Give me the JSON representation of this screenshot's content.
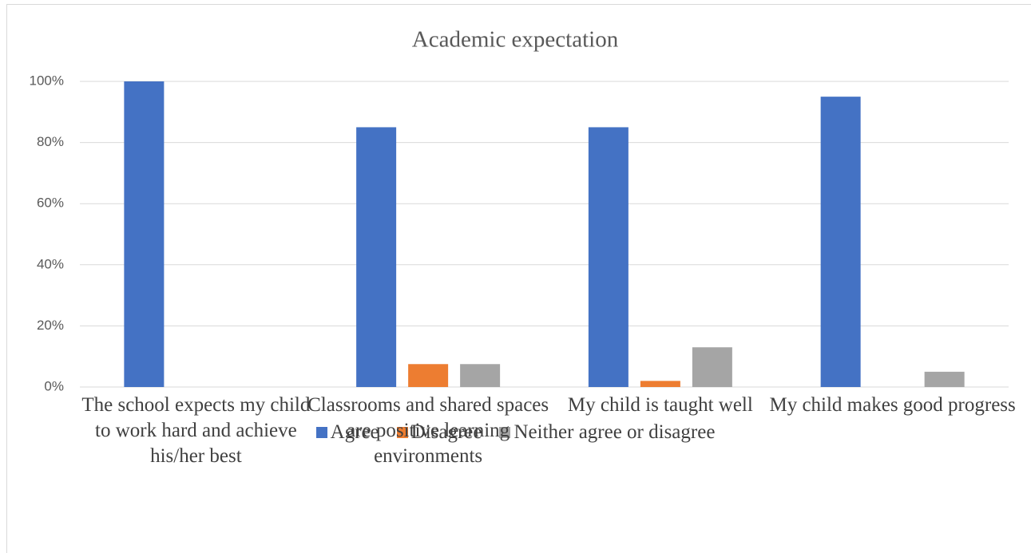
{
  "chart_data": {
    "type": "bar",
    "title": "Academic expectation",
    "categories": [
      "The school expects my child to work hard and achieve his/her best",
      "Classrooms and shared spaces are positive learning environments",
      "My child is taught well",
      "My child makes good progress"
    ],
    "series": [
      {
        "name": "Agree",
        "color": "#4472c4",
        "values": [
          100,
          85,
          85,
          95
        ]
      },
      {
        "name": "Disagree",
        "color": "#ed7d31",
        "values": [
          0,
          7.5,
          2,
          0
        ]
      },
      {
        "name": "Neither agree or disagree",
        "color": "#a5a5a5",
        "values": [
          0,
          7.5,
          13,
          5
        ]
      }
    ],
    "ylim": [
      0,
      100
    ],
    "yticks": [
      {
        "value": 0,
        "label": "0%"
      },
      {
        "value": 20,
        "label": "20%"
      },
      {
        "value": 40,
        "label": "40%"
      },
      {
        "value": 60,
        "label": "60%"
      },
      {
        "value": 80,
        "label": "80%"
      },
      {
        "value": 100,
        "label": "100%"
      }
    ],
    "grid": true,
    "legend": "bottom"
  }
}
